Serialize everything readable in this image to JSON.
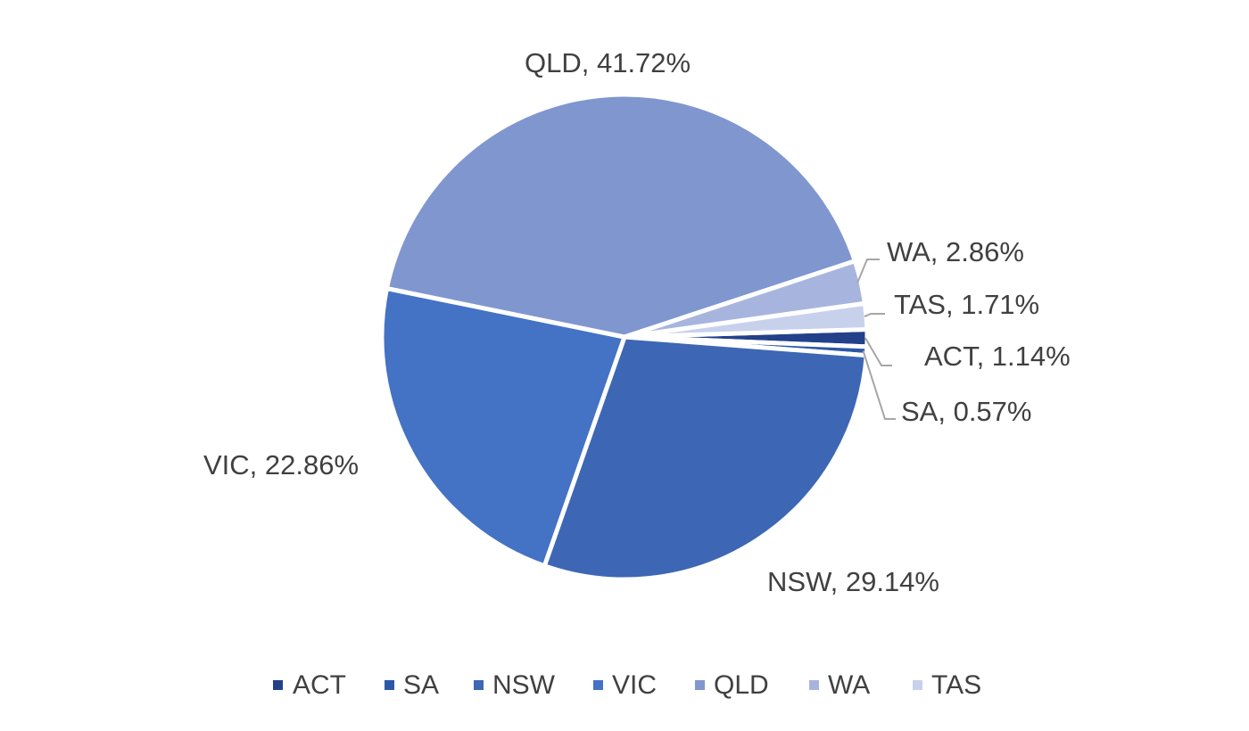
{
  "chart_data": {
    "type": "pie",
    "title": "",
    "unit": "%",
    "slices": [
      {
        "name": "ACT",
        "value": 1.14,
        "label": "ACT, 1.14%",
        "color": "#23418a"
      },
      {
        "name": "SA",
        "value": 0.57,
        "label": "SA, 0.57%",
        "color": "#2c57a6"
      },
      {
        "name": "NSW",
        "value": 29.14,
        "label": "NSW, 29.14%",
        "color": "#3d67b4"
      },
      {
        "name": "VIC",
        "value": 22.86,
        "label": "VIC, 22.86%",
        "color": "#4472c4"
      },
      {
        "name": "QLD",
        "value": 41.72,
        "label": "QLD, 41.72%",
        "color": "#8096cf"
      },
      {
        "name": "WA",
        "value": 2.86,
        "label": "WA, 2.86%",
        "color": "#a7b5de"
      },
      {
        "name": "TAS",
        "value": 1.71,
        "label": "TAS, 1.71%",
        "color": "#c8d1ec"
      }
    ],
    "legend": {
      "position": "bottom",
      "entries": [
        "ACT",
        "SA",
        "NSW",
        "VIC",
        "QLD",
        "WA",
        "TAS"
      ]
    },
    "leader_line_color": "#a6a6a6"
  }
}
